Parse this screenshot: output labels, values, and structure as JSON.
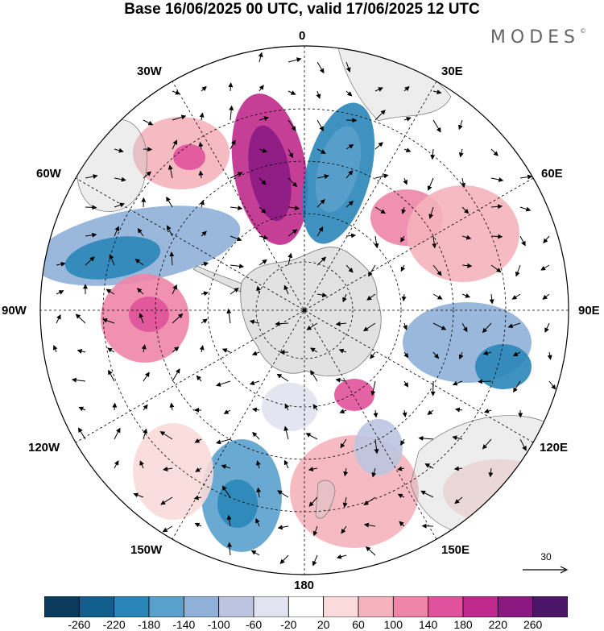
{
  "title": "Base 16/06/2025 00 UTC, valid 17/06/2025 12 UTC",
  "logo": "MODES",
  "logo_mark": "©",
  "longitude_labels": {
    "top": "0",
    "top_right": "30E",
    "right_upper": "60E",
    "right": "90E",
    "right_lower": "120E",
    "bottom_right": "150E",
    "bottom": "180",
    "bottom_left": "150W",
    "left_lower": "120W",
    "left": "90W",
    "left_upper": "60W",
    "top_left": "30W"
  },
  "reference_vector": "30",
  "colorbar": {
    "ticks": [
      "-260",
      "-220",
      "-180",
      "-140",
      "-100",
      "-60",
      "-20",
      "20",
      "60",
      "100",
      "140",
      "180",
      "220",
      "260"
    ],
    "colors": [
      "#0a3a5c",
      "#125f8e",
      "#2a86b8",
      "#5aa0cc",
      "#8fb0d8",
      "#bcc4e0",
      "#e2e2f0",
      "#ffffff",
      "#fadada",
      "#f5b3bd",
      "#ef85a8",
      "#e0529b",
      "#c02a8c",
      "#8a1a82",
      "#4b1668"
    ]
  },
  "colors": {
    "coastline": "#777777",
    "land_overlay": "#d0d0d0",
    "grid": "#000000",
    "arrows": "#000000"
  }
}
